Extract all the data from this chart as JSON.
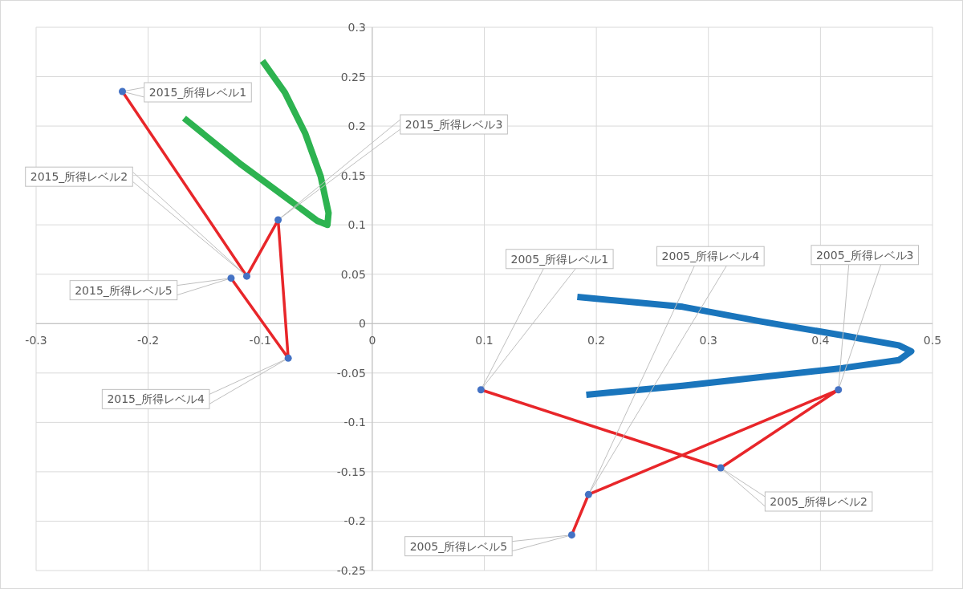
{
  "chart_data": {
    "type": "scatter",
    "xlim": [
      -0.3,
      0.5
    ],
    "ylim": [
      -0.25,
      0.3
    ],
    "xticks": [
      -0.3,
      -0.2,
      -0.1,
      0,
      0.1,
      0.2,
      0.3,
      0.4,
      0.5
    ],
    "yticks": [
      -0.25,
      -0.2,
      -0.15,
      -0.1,
      -0.05,
      0,
      0.05,
      0.1,
      0.15,
      0.2,
      0.25,
      0.3
    ],
    "grid": true,
    "series": [
      {
        "type": "line",
        "color": "#e8262a",
        "marker": "none",
        "x": [
          -0.223,
          -0.112,
          -0.084,
          -0.075,
          -0.126
        ],
        "values": [
          0.235,
          0.048,
          0.105,
          -0.035,
          0.046
        ]
      },
      {
        "type": "line",
        "color": "#e8262a",
        "marker": "none",
        "x": [
          0.097,
          0.311,
          0.416,
          0.193,
          0.178
        ],
        "values": [
          -0.067,
          -0.146,
          -0.067,
          -0.173,
          -0.214
        ]
      },
      {
        "type": "line",
        "color": "#2db350",
        "marker": "none",
        "x": [
          -0.168,
          -0.117,
          -0.075,
          -0.049,
          -0.04,
          -0.039,
          -0.046,
          -0.06,
          -0.078,
          -0.098
        ],
        "values": [
          0.208,
          0.161,
          0.126,
          0.104,
          0.1,
          0.112,
          0.149,
          0.193,
          0.234,
          0.266
        ]
      },
      {
        "type": "line",
        "color": "#1a75bc",
        "marker": "none",
        "x": [
          0.183,
          0.277,
          0.348,
          0.42,
          0.47,
          0.481,
          0.47,
          0.42,
          0.348,
          0.277,
          0.191
        ],
        "values": [
          0.027,
          0.017,
          0.002,
          -0.012,
          -0.022,
          -0.028,
          -0.037,
          -0.045,
          -0.054,
          -0.063,
          -0.072
        ]
      },
      {
        "type": "scatter",
        "color": "#4472c4",
        "marker": "circle",
        "x": [
          -0.223,
          -0.112,
          -0.084,
          -0.075,
          -0.126,
          0.097,
          0.311,
          0.416,
          0.193,
          0.178
        ],
        "values": [
          0.235,
          0.048,
          0.105,
          -0.035,
          0.046,
          -0.067,
          -0.146,
          -0.067,
          -0.173,
          -0.214
        ]
      }
    ],
    "annotations": [
      {
        "text": "2015_所得レベル1",
        "x": -0.223,
        "y": 0.235
      },
      {
        "text": "2015_所得レベル2",
        "x": -0.112,
        "y": 0.048
      },
      {
        "text": "2015_所得レベル3",
        "x": -0.084,
        "y": 0.105
      },
      {
        "text": "2015_所得レベル4",
        "x": -0.075,
        "y": -0.035
      },
      {
        "text": "2015_所得レベル5",
        "x": -0.126,
        "y": 0.046
      },
      {
        "text": "2005_所得レベル1",
        "x": 0.097,
        "y": -0.067
      },
      {
        "text": "2005_所得レベル2",
        "x": 0.311,
        "y": -0.146
      },
      {
        "text": "2005_所得レベル3",
        "x": 0.416,
        "y": -0.067
      },
      {
        "text": "2005_所得レベル4",
        "x": 0.193,
        "y": -0.173
      },
      {
        "text": "2005_所得レベル5",
        "x": 0.178,
        "y": -0.214
      }
    ]
  }
}
